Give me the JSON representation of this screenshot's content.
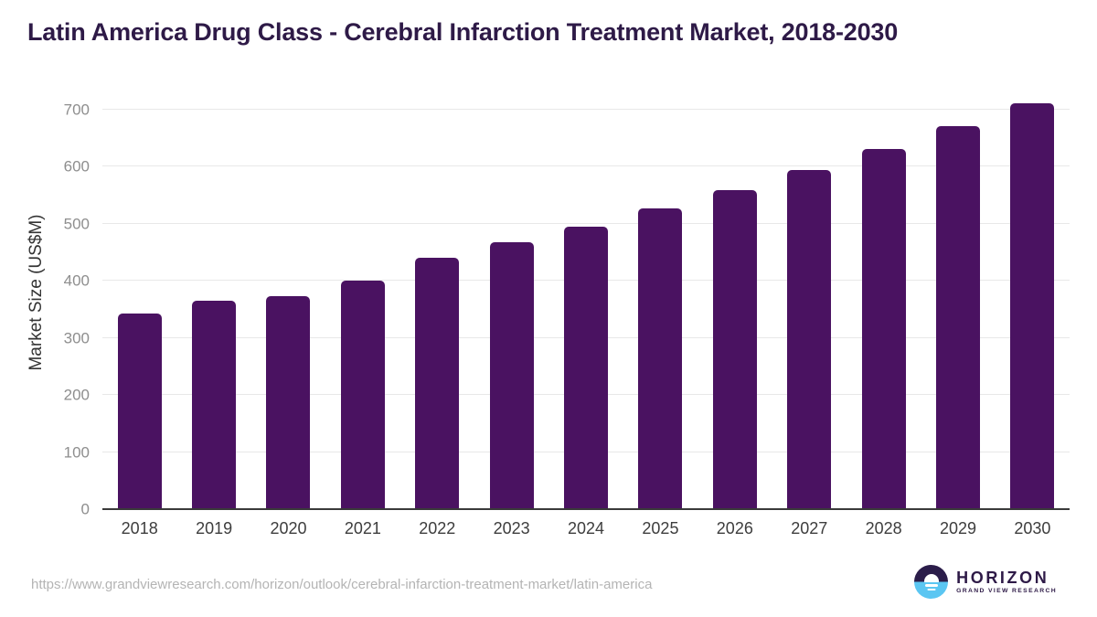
{
  "page": {
    "title": "Latin America Drug Class - Cerebral Infarction Treatment Market, 2018-2030",
    "source_url": "https://www.grandviewresearch.com/horizon/outlook/cerebral-infarction-treatment-market/latin-america"
  },
  "logo": {
    "name": "HORIZON",
    "subtitle": "GRAND VIEW RESEARCH"
  },
  "colors": {
    "bar": "#4a1261",
    "title_text": "#2e1a47",
    "axis_line": "#3a3a3a",
    "tick_label": "#8e8e8e",
    "x_label": "#3d3d3d",
    "gridline": "#e8e8e8",
    "source_url_text": "#b4b4b4",
    "logo_dark": "#2b1d4a",
    "logo_blue": "#5bc6f2"
  },
  "chart_data": {
    "type": "bar",
    "title": "Latin America Drug Class - Cerebral Infarction Treatment Market, 2018-2030",
    "categories": [
      "2018",
      "2019",
      "2020",
      "2021",
      "2022",
      "2023",
      "2024",
      "2025",
      "2026",
      "2027",
      "2028",
      "2029",
      "2030"
    ],
    "values": [
      343,
      365,
      374,
      401,
      440,
      467,
      495,
      527,
      559,
      594,
      631,
      671,
      712
    ],
    "xlabel": "",
    "ylabel": "Market Size (US$M)",
    "ylim": [
      0,
      700
    ],
    "yticks": [
      0,
      100,
      200,
      300,
      400,
      500,
      600,
      700
    ],
    "grid": "horizontal",
    "legend_position": "none",
    "bar_color": "#4a1261"
  }
}
